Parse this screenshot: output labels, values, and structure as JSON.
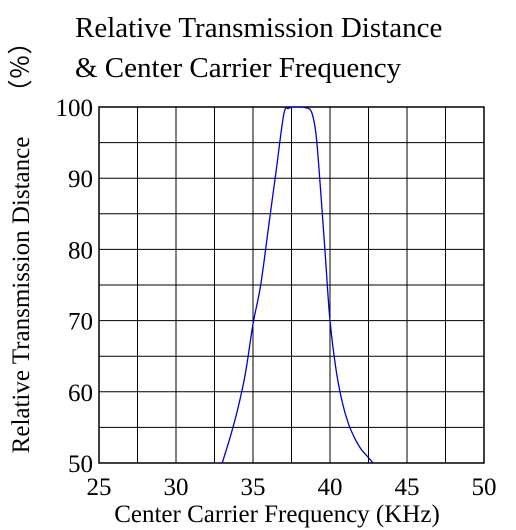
{
  "chart_data": {
    "type": "line",
    "title": [
      "Relative Transmission Distance",
      "& Center Carrier Frequency"
    ],
    "xlabel": "Center Carrier Frequency (KHz)",
    "ylabel": "Relative Transmission Distance",
    "ylabel_unit": "（％）",
    "xlim": [
      25,
      50
    ],
    "ylim": [
      50,
      100
    ],
    "xticks": [
      25,
      30,
      35,
      40,
      45,
      50
    ],
    "yticks": [
      50,
      60,
      70,
      80,
      90,
      100
    ],
    "grid": true,
    "series": [
      {
        "color": "#0000cc",
        "x": [
          33.0,
          33.5,
          34.0,
          34.5,
          35.0,
          35.5,
          36.0,
          36.5,
          37.0,
          37.3,
          37.6,
          38.0,
          38.4,
          38.8,
          39.1,
          39.4,
          39.7,
          40.0,
          40.4,
          40.8,
          41.2,
          41.6,
          42.0,
          42.4,
          42.8
        ],
        "y": [
          50.0,
          53.5,
          57.5,
          62.5,
          69.5,
          75.0,
          83.0,
          91.0,
          99.0,
          99.8,
          100.0,
          100.0,
          99.9,
          99.3,
          96.0,
          88.0,
          79.0,
          70.0,
          63.0,
          58.5,
          55.5,
          53.5,
          52.0,
          51.0,
          50.0
        ]
      }
    ]
  }
}
